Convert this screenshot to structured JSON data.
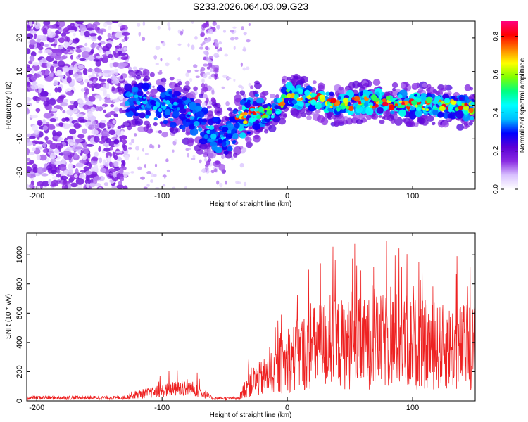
{
  "title": "S233.2026.064.03.09.G23",
  "chart_data": [
    {
      "type": "heatmap",
      "name": "spectrogram",
      "xlabel": "Height of straight line (km)",
      "ylabel": "Frequency (Hz)",
      "xlim": [
        -208,
        150
      ],
      "ylim": [
        -25,
        25
      ],
      "xticks": [
        -200,
        -100,
        0,
        100
      ],
      "yticks": [
        -20,
        -10,
        0,
        10,
        20
      ],
      "colorbar": {
        "label": "Normalized spectral amplitude",
        "range": [
          0,
          0.88
        ],
        "ticks": [
          0.0,
          0.2,
          0.4,
          0.6,
          0.8
        ],
        "colors": [
          "#ffffff",
          "#d9c2ff",
          "#8a2be2",
          "#5b00d6",
          "#0000ff",
          "#00bfff",
          "#00ffff",
          "#00ff80",
          "#7fff00",
          "#ffff00",
          "#ff8000",
          "#ff0000",
          "#ff007f"
        ]
      },
      "ridge": [
        {
          "x": -125,
          "f": 2
        },
        {
          "x": -100,
          "f": 0
        },
        {
          "x": -80,
          "f": -2
        },
        {
          "x": -60,
          "f": -8
        },
        {
          "x": -50,
          "f": -11
        },
        {
          "x": -40,
          "f": -5
        },
        {
          "x": -25,
          "f": -2
        },
        {
          "x": -10,
          "f": -2
        },
        {
          "x": 0,
          "f": 3
        },
        {
          "x": 20,
          "f": 2
        },
        {
          "x": 40,
          "f": 0
        },
        {
          "x": 60,
          "f": 1
        },
        {
          "x": 80,
          "f": 1
        },
        {
          "x": 100,
          "f": 0
        },
        {
          "x": 120,
          "f": 0
        },
        {
          "x": 150,
          "f": -1
        }
      ]
    },
    {
      "type": "line",
      "name": "snr",
      "xlabel": "Height of straight line (km)",
      "ylabel": "SNR (10 * v/v)",
      "xlim": [
        -208,
        150
      ],
      "ylim": [
        0,
        1150
      ],
      "xticks": [
        -200,
        -100,
        0,
        100
      ],
      "yticks": [
        0,
        200,
        400,
        600,
        800,
        1000
      ],
      "color": "#ee2222",
      "envelope": [
        {
          "x": -208,
          "y": 25
        },
        {
          "x": -130,
          "y": 25
        },
        {
          "x": -125,
          "y": 45
        },
        {
          "x": -100,
          "y": 80
        },
        {
          "x": -80,
          "y": 110
        },
        {
          "x": -70,
          "y": 80
        },
        {
          "x": -60,
          "y": 20
        },
        {
          "x": -38,
          "y": 20
        },
        {
          "x": -32,
          "y": 150
        },
        {
          "x": -20,
          "y": 200
        },
        {
          "x": -5,
          "y": 300
        },
        {
          "x": 10,
          "y": 420
        },
        {
          "x": 30,
          "y": 500
        },
        {
          "x": 60,
          "y": 500
        },
        {
          "x": 90,
          "y": 540
        },
        {
          "x": 120,
          "y": 470
        },
        {
          "x": 150,
          "y": 480
        }
      ]
    }
  ]
}
